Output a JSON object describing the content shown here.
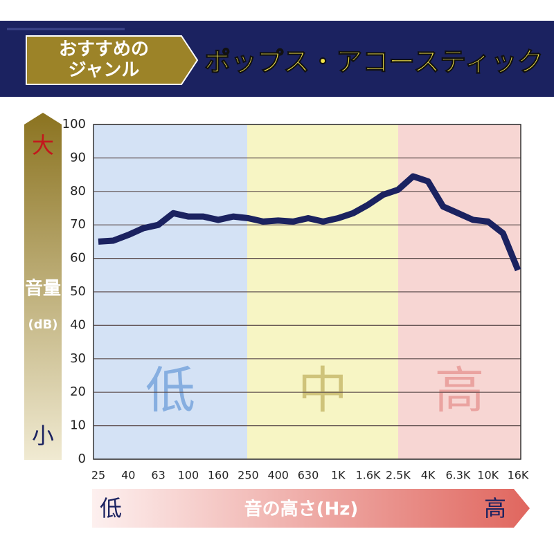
{
  "header": {
    "badge_lines": [
      "おすすめの",
      "ジャンル"
    ],
    "title": "ポップス・アコースティック"
  },
  "chart_data": {
    "type": "line",
    "categories": [
      "25",
      null,
      "40",
      null,
      "63",
      null,
      "100",
      null,
      "160",
      null,
      "250",
      null,
      "400",
      null,
      "630",
      null,
      "1K",
      null,
      "1.6K",
      null,
      "2.5K",
      null,
      "4K",
      null,
      "6.3K",
      null,
      "10K",
      null,
      "16K"
    ],
    "series": [
      {
        "color": "#1b2260",
        "values": [
          65,
          65.3,
          67,
          69,
          70,
          73.5,
          72.5,
          72.5,
          71.5,
          72.5,
          72,
          71,
          71.3,
          71,
          72,
          71,
          72,
          73.5,
          76,
          79,
          80.5,
          84.5,
          83,
          75.5,
          73.5,
          71.5,
          71,
          67.5,
          56.5
        ]
      }
    ],
    "ylim": [
      0,
      100
    ],
    "yticks": [
      0,
      10,
      20,
      30,
      40,
      50,
      60,
      70,
      80,
      90,
      100
    ],
    "grid": true,
    "regions": [
      {
        "label": "低",
        "color": "#d4e2f5",
        "text_color": "#86aee0"
      },
      {
        "label": "中",
        "color": "#f7f5c4",
        "text_color": "#cfc37a"
      },
      {
        "label": "高",
        "color": "#f7d6d3",
        "text_color": "#eaa3a0"
      }
    ],
    "y_axis": {
      "high": "大",
      "label_lines": [
        "音量",
        "(dB)"
      ],
      "low": "小"
    },
    "x_axis": {
      "low": "低",
      "label": "音の高さ(Hz)",
      "high": "高"
    }
  }
}
